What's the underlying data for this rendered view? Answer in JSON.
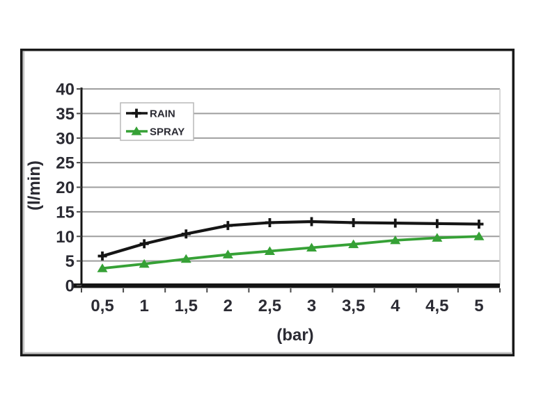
{
  "chart_data": {
    "type": "line",
    "title": "",
    "xlabel": "(bar)",
    "ylabel": "(l/min)",
    "x": [
      0.5,
      1,
      1.5,
      2,
      2.5,
      3,
      3.5,
      4,
      4.5,
      5
    ],
    "x_tick_labels": [
      "0,5",
      "1",
      "1,5",
      "2",
      "2,5",
      "3",
      "3,5",
      "4",
      "4,5",
      "5"
    ],
    "y_ticks": [
      0,
      5,
      10,
      15,
      20,
      25,
      30,
      35,
      40
    ],
    "ylim": [
      0,
      40
    ],
    "grid": "horizontal",
    "legend_position": "top-left-inside",
    "series": [
      {
        "name": "RAIN",
        "marker": "plus",
        "color": "#151515",
        "values": [
          6,
          8.5,
          10.5,
          12.2,
          12.8,
          13,
          12.8,
          12.7,
          12.6,
          12.5
        ]
      },
      {
        "name": "SPRAY",
        "marker": "triangle",
        "color": "#36a136",
        "values": [
          3.5,
          4.4,
          5.4,
          6.3,
          7,
          7.7,
          8.4,
          9.2,
          9.7,
          10
        ]
      }
    ]
  },
  "colors": {
    "background": "#ffffff",
    "figure_border": "#1a1a1a",
    "figure_inner_shadow": "#c6c6c6",
    "gridline": "#9e9e9e",
    "plot_right_border": "#cccccc",
    "axis": "#141414",
    "tick": "#4a4a4a",
    "tick_label": "#2b2b33",
    "legend_border": "#b8b8b8",
    "legend_text": "#2b2b33"
  }
}
